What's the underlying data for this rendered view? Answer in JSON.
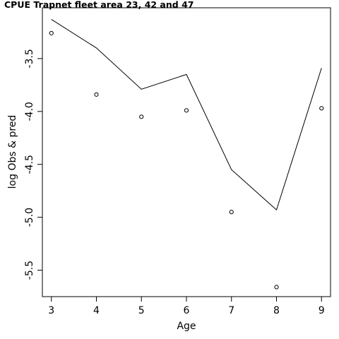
{
  "chart_data": {
    "type": "line",
    "title": "CPUE Trapnet fleet area 23, 42 and 47",
    "xlabel": "Age",
    "ylabel": "log Obs & pred",
    "x": [
      3,
      4,
      5,
      6,
      7,
      8,
      9
    ],
    "xlim": [
      2.8,
      9.2
    ],
    "ylim": [
      -5.75,
      -3.02
    ],
    "xticks": [
      "3",
      "4",
      "5",
      "6",
      "7",
      "8",
      "9"
    ],
    "yticks": [
      "-3.5",
      "-4.0",
      "-4.5",
      "-5.0",
      "-5.5"
    ],
    "ytick_values": [
      -3.5,
      -4.0,
      -4.5,
      -5.0,
      -5.5
    ],
    "series": [
      {
        "kind": "line",
        "values": [
          -3.13,
          -3.4,
          -3.79,
          -3.65,
          -4.55,
          -4.93,
          -3.59
        ]
      },
      {
        "kind": "points",
        "values": [
          -3.26,
          -3.84,
          -4.05,
          -3.99,
          -4.95,
          -5.66,
          -3.97
        ]
      }
    ],
    "grid": false,
    "legend": "none"
  }
}
